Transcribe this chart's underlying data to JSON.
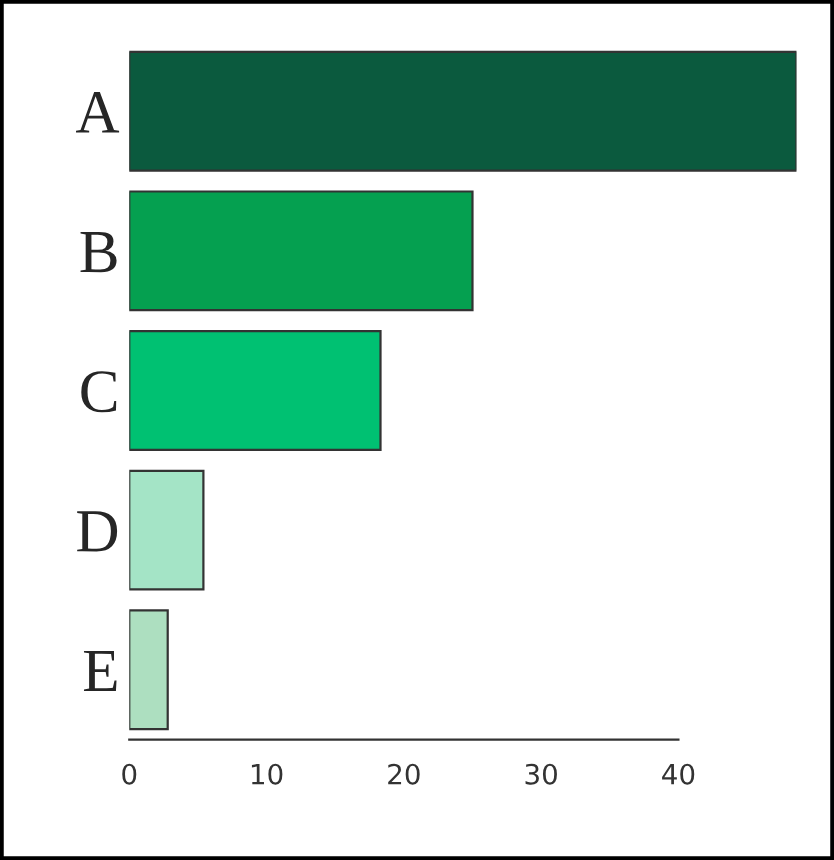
{
  "chart_data": {
    "type": "bar",
    "orientation": "horizontal",
    "categories": [
      "A",
      "B",
      "C",
      "D",
      "E"
    ],
    "values": [
      48.6,
      25.0,
      18.3,
      5.4,
      2.8
    ],
    "colors": [
      "#0b5a3e",
      "#05a050",
      "#00c172",
      "#a4e4c6",
      "#addfc0"
    ],
    "xlim": [
      0,
      48.6
    ],
    "xticks": [
      0,
      10,
      20,
      30,
      40
    ],
    "grid": false,
    "legend": false
  }
}
